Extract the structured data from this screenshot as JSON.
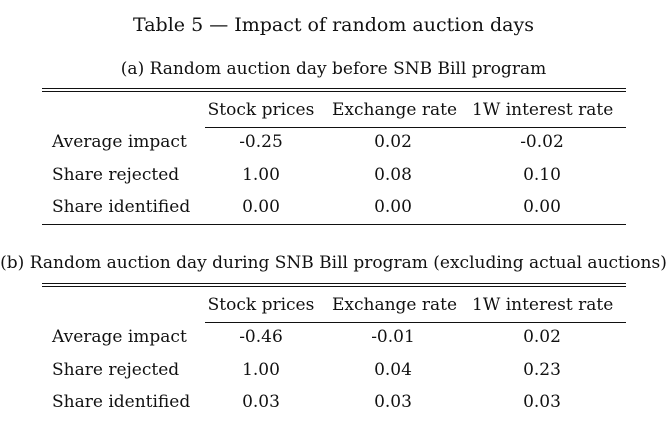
{
  "title": "Table  5 — Impact of random auction days",
  "columns": [
    "Stock prices",
    "Exchange rate",
    "1W interest rate"
  ],
  "panels": [
    {
      "subtitle": "(a) Random auction day before SNB Bill program",
      "rows": [
        {
          "label": "Average impact",
          "values": [
            "-0.25",
            "0.02",
            "-0.02"
          ]
        },
        {
          "label": "Share rejected",
          "values": [
            "1.00",
            "0.08",
            "0.10"
          ]
        },
        {
          "label": "Share identified",
          "values": [
            "0.00",
            "0.00",
            "0.00"
          ]
        }
      ]
    },
    {
      "subtitle": "(b) Random auction day during SNB Bill program (excluding actual auctions)",
      "rows": [
        {
          "label": "Average impact",
          "values": [
            "-0.46",
            "-0.01",
            "0.02"
          ]
        },
        {
          "label": "Share rejected",
          "values": [
            "1.00",
            "0.04",
            "0.23"
          ]
        },
        {
          "label": "Share identified",
          "values": [
            "0.03",
            "0.03",
            "0.03"
          ]
        }
      ]
    }
  ]
}
